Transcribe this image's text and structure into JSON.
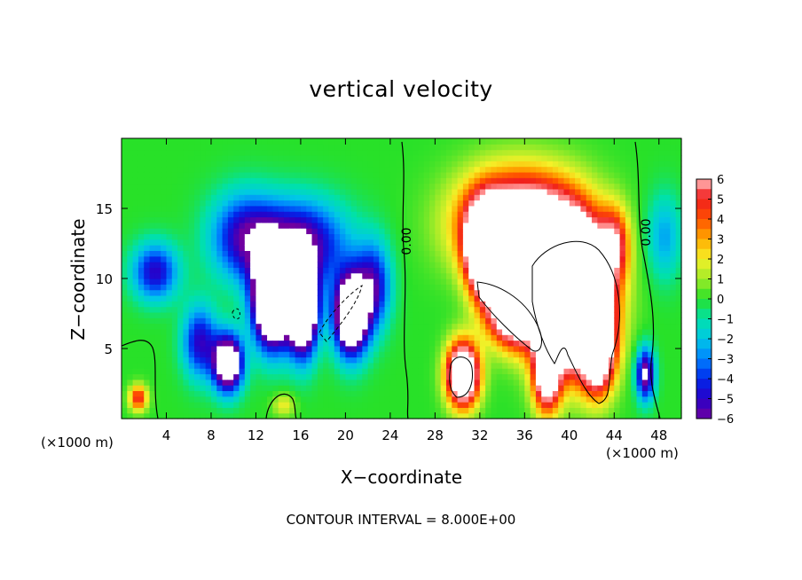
{
  "chart_data": {
    "type": "heatmap",
    "title": "vertical velocity",
    "xlabel": "X−coordinate",
    "ylabel": "Z−coordinate",
    "x_units": "(×1000 m)",
    "xlim": [
      0,
      50
    ],
    "ylim": [
      0,
      20
    ],
    "x_ticks": [
      4,
      8,
      12,
      16,
      20,
      24,
      28,
      32,
      36,
      40,
      44,
      48
    ],
    "y_ticks": [
      5,
      10,
      15
    ],
    "colorbar": {
      "min": -6,
      "max": 6,
      "ticks": [
        6,
        5,
        4,
        3,
        2,
        1,
        0,
        -1,
        -2,
        -3,
        -4,
        -5,
        -6
      ],
      "tick_labels": [
        "6",
        "5",
        "4",
        "3",
        "2",
        "1",
        "0",
        "−1",
        "−2",
        "−3",
        "−4",
        "−5",
        "−6"
      ]
    },
    "contour_labels": [
      "0.00",
      "0.00"
    ],
    "contour_interval_text": "CONTOUR INTERVAL = 8.000E+00",
    "features": [
      {
        "x": 13.5,
        "z": 8.5,
        "w": -14,
        "sx": 1.7,
        "sz": 3.2
      },
      {
        "x": 16.2,
        "z": 8.0,
        "w": -13,
        "sx": 1.3,
        "sz": 3.2
      },
      {
        "x": 20.5,
        "z": 7.5,
        "w": -12,
        "sx": 1.5,
        "sz": 2.8
      },
      {
        "x": 9.5,
        "z": 4.0,
        "w": -10,
        "sx": 1.3,
        "sz": 2.0
      },
      {
        "x": 16.0,
        "z": 12.5,
        "w": -6,
        "sx": 4.0,
        "sz": 3.0
      },
      {
        "x": 11.0,
        "z": 13.0,
        "w": -5,
        "sx": 3.0,
        "sz": 3.0
      },
      {
        "x": 3.0,
        "z": 10.5,
        "w": -5,
        "sx": 2.0,
        "sz": 2.0
      },
      {
        "x": 22.5,
        "z": 9.5,
        "w": -5,
        "sx": 1.5,
        "sz": 3.0
      },
      {
        "x": 7.0,
        "z": 5.5,
        "w": -5,
        "sx": 1.5,
        "sz": 2.5
      },
      {
        "x": 35.5,
        "z": 14.0,
        "w": 10,
        "sx": 5.0,
        "sz": 3.5
      },
      {
        "x": 32.5,
        "z": 12.0,
        "w": 13,
        "sx": 1.6,
        "sz": 3.0
      },
      {
        "x": 40.0,
        "z": 9.0,
        "w": 22,
        "sx": 3.2,
        "sz": 4.5
      },
      {
        "x": 35.0,
        "z": 8.0,
        "w": 12,
        "sx": 2.2,
        "sz": 2.5
      },
      {
        "x": 30.5,
        "z": 3.2,
        "w": 12,
        "sx": 1.4,
        "sz": 2.2
      },
      {
        "x": 42.5,
        "z": 5.0,
        "w": 10,
        "sx": 1.5,
        "sz": 3.0
      },
      {
        "x": 38.0,
        "z": 3.0,
        "w": 8,
        "sx": 1.2,
        "sz": 2.5
      },
      {
        "x": 44.0,
        "z": 12.5,
        "w": 5,
        "sx": 1.3,
        "sz": 2.5
      },
      {
        "x": 46.8,
        "z": 3.2,
        "w": -7,
        "sx": 0.8,
        "sz": 1.8
      },
      {
        "x": 1.5,
        "z": 1.5,
        "w": 5,
        "sx": 0.8,
        "sz": 0.9
      },
      {
        "x": 48.5,
        "z": 13.0,
        "w": -2.5,
        "sx": 1.5,
        "sz": 3.0
      },
      {
        "x": 14.5,
        "z": 1.0,
        "w": 2,
        "sx": 1.0,
        "sz": 0.8
      }
    ]
  }
}
